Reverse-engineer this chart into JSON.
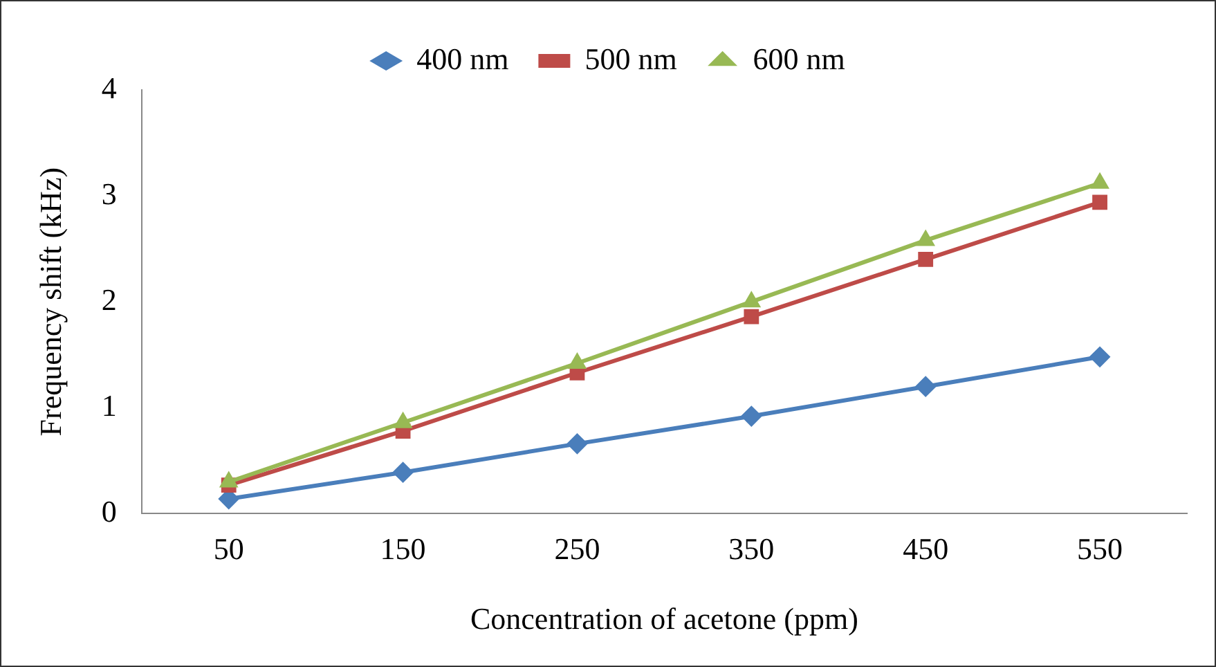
{
  "chart_data": {
    "type": "line",
    "xlabel": "Concentration of acetone (ppm)",
    "ylabel": "Frequency shift (kHz)",
    "categories": [
      "50",
      "150",
      "250",
      "350",
      "450",
      "550"
    ],
    "ylim": [
      0,
      4
    ],
    "yticks": [
      0,
      1,
      2,
      3,
      4
    ],
    "grid": false,
    "legend": "top",
    "line_style": "solid",
    "series": [
      {
        "name": "400 nm",
        "color": "#4a7ebb",
        "marker": "diamond",
        "values": [
          0.14,
          0.39,
          0.66,
          0.92,
          1.2,
          1.48
        ]
      },
      {
        "name": "500 nm",
        "color": "#be4b48",
        "marker": "square",
        "values": [
          0.27,
          0.78,
          1.33,
          1.86,
          2.4,
          2.94
        ]
      },
      {
        "name": "600 nm",
        "color": "#98b954",
        "marker": "triangle",
        "values": [
          0.3,
          0.86,
          1.42,
          2.0,
          2.58,
          3.12
        ]
      }
    ]
  }
}
